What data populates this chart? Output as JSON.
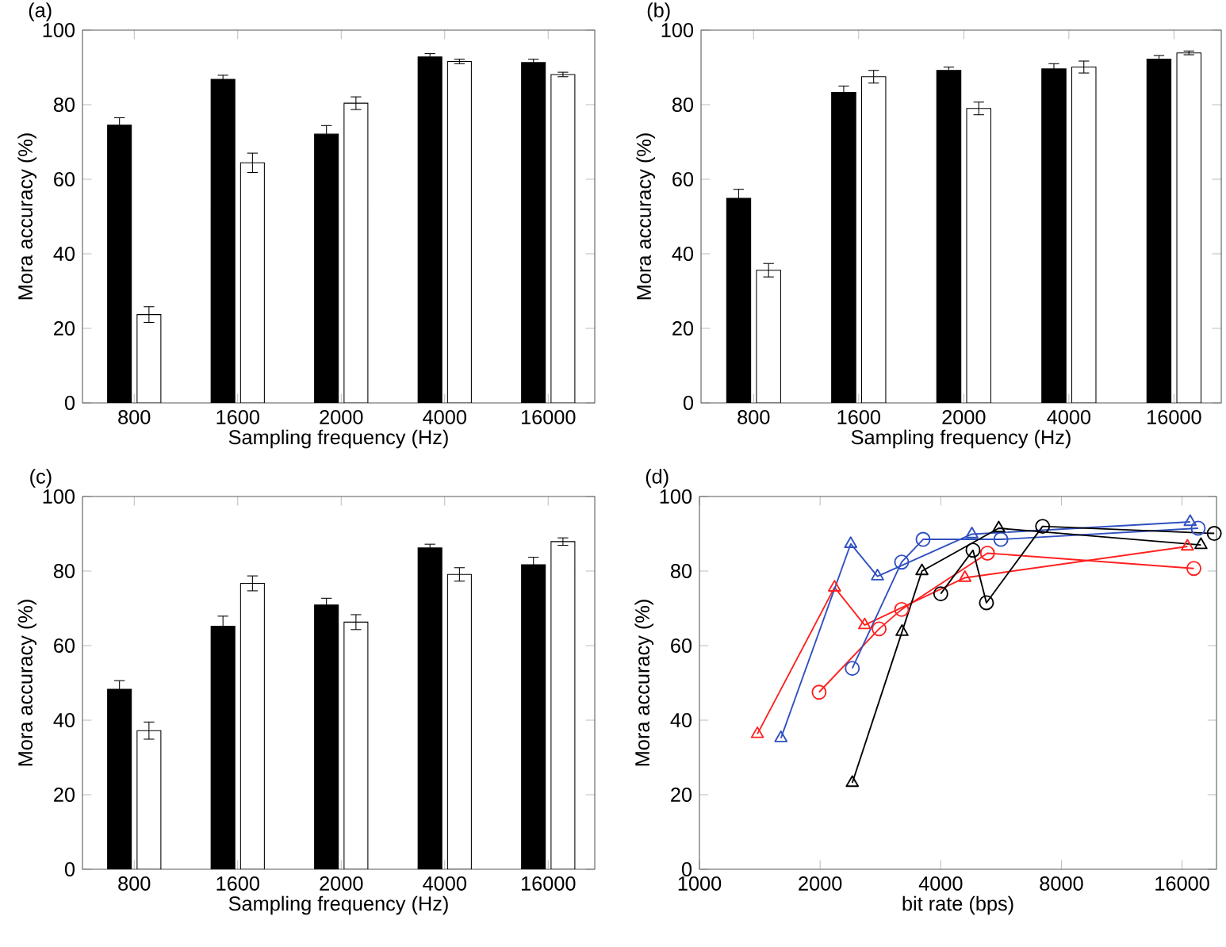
{
  "chart_data": [
    {
      "type": "bar",
      "title": "(a)",
      "xlabel": "Sampling frequency (Hz)",
      "ylabel": "Mora accuracy (%)",
      "categories": [
        "800",
        "1600",
        "2000",
        "4000",
        "16000"
      ],
      "ylim": [
        0,
        100
      ],
      "yticks": [
        0,
        20,
        40,
        60,
        80,
        100
      ],
      "series": [
        {
          "color": "#000000",
          "values": [
            74.5,
            86.8,
            72.1,
            92.8,
            91.3
          ],
          "errors": [
            2.0,
            1.1,
            2.3,
            0.9,
            0.9
          ]
        },
        {
          "color": "#ffffff",
          "values": [
            23.7,
            64.4,
            80.4,
            91.6,
            88.1
          ],
          "errors": [
            2.1,
            2.6,
            1.7,
            0.6,
            0.6
          ]
        }
      ]
    },
    {
      "type": "bar",
      "title": "(b)",
      "xlabel": "Sampling frequency (Hz)",
      "ylabel": "Mora accuracy (%)",
      "categories": [
        "800",
        "1600",
        "2000",
        "4000",
        "16000"
      ],
      "ylim": [
        0,
        100
      ],
      "yticks": [
        0,
        20,
        40,
        60,
        80,
        100
      ],
      "series": [
        {
          "color": "#000000",
          "values": [
            54.9,
            83.3,
            89.2,
            89.6,
            92.2
          ],
          "errors": [
            2.4,
            1.7,
            0.9,
            1.4,
            1.0
          ]
        },
        {
          "color": "#ffffff",
          "values": [
            35.6,
            87.5,
            79.0,
            90.1,
            93.9
          ],
          "errors": [
            1.8,
            1.7,
            1.7,
            1.6,
            0.5
          ]
        }
      ]
    },
    {
      "type": "bar",
      "title": "(c)",
      "xlabel": "Sampling frequency (Hz)",
      "ylabel": "Mora accuracy (%)",
      "categories": [
        "800",
        "1600",
        "2000",
        "4000",
        "16000"
      ],
      "ylim": [
        0,
        100
      ],
      "yticks": [
        0,
        20,
        40,
        60,
        80,
        100
      ],
      "series": [
        {
          "color": "#000000",
          "values": [
            48.3,
            65.2,
            70.9,
            86.2,
            81.7
          ],
          "errors": [
            2.3,
            2.7,
            1.8,
            1.0,
            2.0
          ]
        },
        {
          "color": "#ffffff",
          "values": [
            37.2,
            76.7,
            66.3,
            79.1,
            87.9
          ],
          "errors": [
            2.3,
            2.0,
            2.0,
            1.8,
            1.0
          ]
        }
      ]
    },
    {
      "type": "line",
      "title": "(d)",
      "xlabel": "bit rate (bps)",
      "ylabel": "Mora accuracy (%)",
      "log": "x",
      "xlim": [
        1000,
        19500
      ],
      "xticks": [
        1000,
        2000,
        4000,
        8000,
        16000
      ],
      "ylim": [
        0,
        100
      ],
      "yticks": [
        0,
        20,
        40,
        60,
        80,
        100
      ],
      "series": [
        {
          "color": "#ff2020",
          "marker": "triangle",
          "x": [
            1395,
            2173,
            2583,
            4595,
            16500
          ],
          "values": [
            36.3,
            75.6,
            65.5,
            78.2,
            86.6
          ]
        },
        {
          "color": "#ff2020",
          "marker": "circle",
          "x": [
            1988,
            2807,
            3195,
            5230,
            17120
          ],
          "values": [
            47.5,
            64.5,
            69.7,
            84.8,
            80.7
          ]
        },
        {
          "color": "#3050c0",
          "marker": "triangle",
          "x": [
            1597,
            2384,
            2781,
            4783,
            16760
          ],
          "values": [
            35.2,
            87.3,
            78.6,
            89.9,
            93.2
          ]
        },
        {
          "color": "#3050c0",
          "marker": "circle",
          "x": [
            2406,
            3195,
            3613,
            5650,
            17550
          ],
          "values": [
            53.9,
            82.4,
            88.5,
            88.5,
            91.5
          ]
        },
        {
          "color": "#000000",
          "marker": "triangle",
          "x": [
            2406,
            3202,
            3590,
            5580,
            17830
          ],
          "values": [
            23.2,
            63.7,
            80.0,
            91.5,
            87.0
          ]
        },
        {
          "color": "#000000",
          "marker": "circle",
          "x": [
            4000,
            4813,
            5200,
            7180,
            19250
          ],
          "values": [
            73.9,
            85.6,
            71.5,
            92.0,
            90.1
          ]
        }
      ]
    }
  ]
}
